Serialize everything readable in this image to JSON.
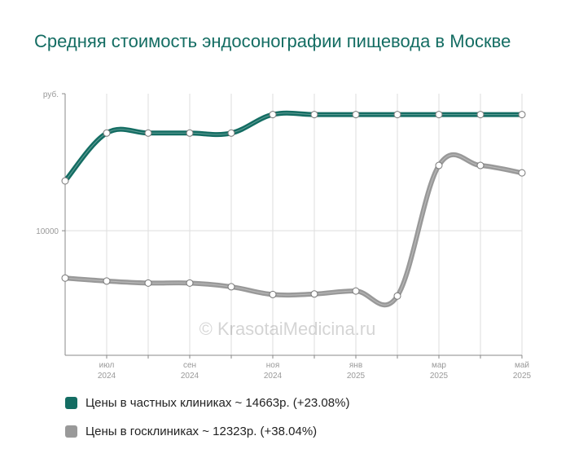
{
  "title": "Средняя стоимость эндосонографии пищевода в Москве",
  "watermark": "© KrasotaiMedicina.ru",
  "colors": {
    "private": "#146d63",
    "public": "#999999",
    "grid": "#dddddd",
    "axis": "#888888",
    "tick": "#999999"
  },
  "chart_data": {
    "type": "line",
    "y_unit_label": "руб.",
    "ylim": [
      5000,
      15500
    ],
    "y_ticks": [
      {
        "value": 10000,
        "label": "10000"
      }
    ],
    "x_tick_labels": [
      {
        "index": 1,
        "month": "июл",
        "year": "2024"
      },
      {
        "index": 3,
        "month": "сен",
        "year": "2024"
      },
      {
        "index": 5,
        "month": "ноя",
        "year": "2024"
      },
      {
        "index": 7,
        "month": "янв",
        "year": "2025"
      },
      {
        "index": 9,
        "month": "мар",
        "year": "2025"
      },
      {
        "index": 11,
        "month": "май",
        "year": "2025"
      }
    ],
    "x": [
      "2024-06",
      "2024-07",
      "2024-08",
      "2024-09",
      "2024-10",
      "2024-11",
      "2024-12",
      "2025-01",
      "2025-02",
      "2025-03",
      "2025-04",
      "2025-05"
    ],
    "series": [
      {
        "name": "Цены в частных клиниках",
        "key": "private",
        "values": [
          12000,
          13920,
          13920,
          13920,
          13920,
          14663,
          14663,
          14663,
          14663,
          14663,
          14663,
          14663
        ]
      },
      {
        "name": "Цены в госклиниках",
        "key": "public",
        "values": [
          8100,
          7980,
          7900,
          7900,
          7750,
          7440,
          7460,
          7580,
          7380,
          12620,
          12620,
          12323
        ]
      }
    ],
    "grid": true,
    "legend_position": "bottom"
  },
  "legend": [
    {
      "key": "private",
      "text": "Цены в частных клиниках ~ 14663р. (+23.08%)"
    },
    {
      "key": "public",
      "text": "Цены в госклиниках ~ 12323р. (+38.04%)"
    }
  ]
}
